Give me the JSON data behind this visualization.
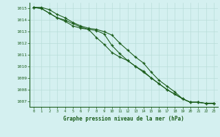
{
  "title": "Graphe pression niveau de la mer (hPa)",
  "background_color": "#d4f0f0",
  "grid_color": "#b8ddd8",
  "line_color": "#1a5c1a",
  "x_hours": [
    0,
    1,
    2,
    3,
    4,
    5,
    6,
    7,
    8,
    9,
    10,
    11,
    12,
    13,
    14,
    15,
    16,
    17,
    18,
    19,
    20,
    21,
    22,
    23
  ],
  "line1": [
    1015.1,
    1015.1,
    1014.9,
    1014.5,
    1014.2,
    1013.8,
    1013.5,
    1013.3,
    1013.2,
    1013.0,
    1012.7,
    1012.0,
    1011.4,
    1010.8,
    1010.3,
    1009.5,
    1008.8,
    1008.3,
    1007.8,
    1007.2,
    1006.9,
    1006.9,
    1006.8,
    1006.8
  ],
  "line2": [
    1015.1,
    1015.0,
    1014.6,
    1014.2,
    1013.9,
    1013.5,
    1013.3,
    1013.2,
    1013.1,
    1012.8,
    1011.8,
    1011.1,
    1010.5,
    1010.0,
    1009.5,
    1009.0,
    1008.5,
    1008.0,
    1007.6,
    1007.2,
    1006.9,
    1006.9,
    1006.8,
    1006.8
  ],
  "line3": [
    1015.1,
    1015.0,
    1014.6,
    1014.2,
    1014.0,
    1013.7,
    1013.4,
    1013.2,
    1012.5,
    1011.9,
    1011.2,
    1010.8,
    1010.5,
    1010.0,
    1009.6,
    1009.0,
    1008.5,
    1008.0,
    1007.6,
    1007.2,
    1006.9,
    1006.9,
    1006.8,
    1006.8
  ],
  "ylim": [
    1006.5,
    1015.5
  ],
  "yticks": [
    1007,
    1008,
    1009,
    1010,
    1011,
    1012,
    1013,
    1014,
    1015
  ],
  "xlim": [
    -0.5,
    23.5
  ],
  "xticks": [
    0,
    1,
    2,
    3,
    4,
    5,
    6,
    7,
    8,
    9,
    10,
    11,
    12,
    13,
    14,
    15,
    16,
    17,
    18,
    19,
    20,
    21,
    22,
    23
  ]
}
